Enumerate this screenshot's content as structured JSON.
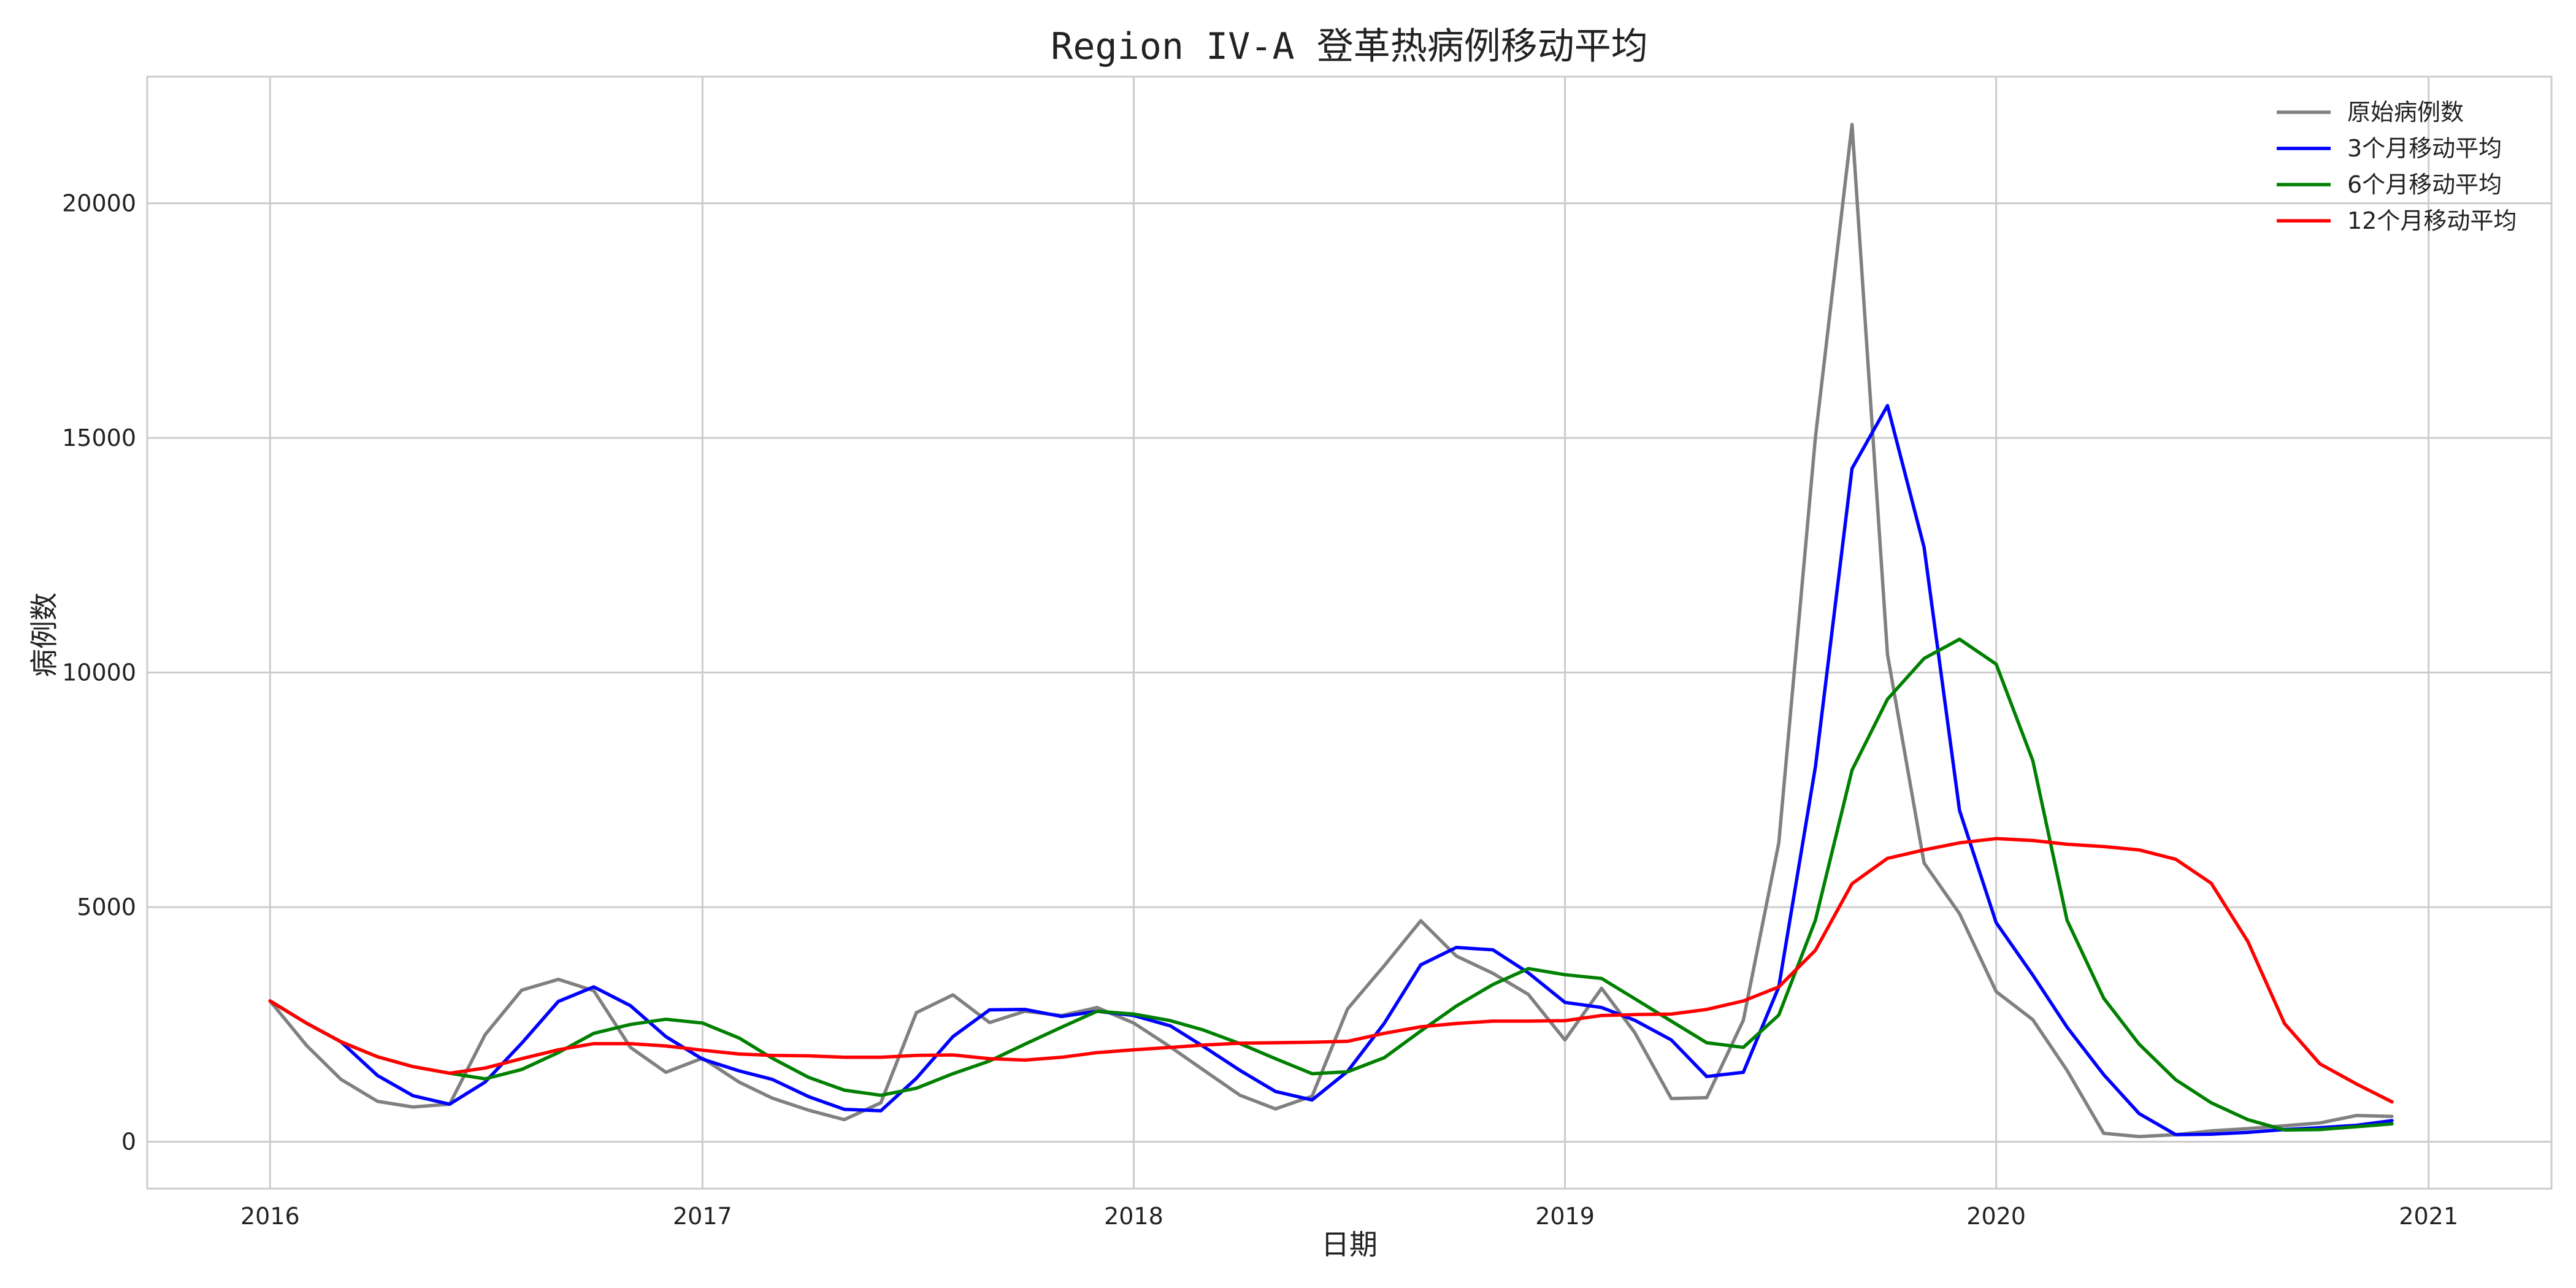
{
  "chart_data": {
    "type": "line",
    "title": "Region IV-A 登革热病例移动平均",
    "xlabel": "日期",
    "ylabel": "病例数",
    "xlim": [
      "2015-09-19",
      "2021-04-15"
    ],
    "ylim": [
      -1000,
      22700
    ],
    "x_ticks": [
      "2016",
      "2017",
      "2018",
      "2019",
      "2020",
      "2021"
    ],
    "y_ticks": [
      0,
      5000,
      10000,
      15000,
      20000
    ],
    "grid": true,
    "legend_position": "top-right",
    "x": [
      "2016-01-01",
      "2016-02-01",
      "2016-03-01",
      "2016-04-01",
      "2016-05-01",
      "2016-06-01",
      "2016-07-01",
      "2016-08-01",
      "2016-09-01",
      "2016-10-01",
      "2016-11-01",
      "2016-12-01",
      "2017-01-01",
      "2017-02-01",
      "2017-03-01",
      "2017-04-01",
      "2017-05-01",
      "2017-06-01",
      "2017-07-01",
      "2017-08-01",
      "2017-09-01",
      "2017-10-01",
      "2017-11-01",
      "2017-12-01",
      "2018-01-01",
      "2018-02-01",
      "2018-03-01",
      "2018-04-01",
      "2018-05-01",
      "2018-06-01",
      "2018-07-01",
      "2018-08-01",
      "2018-09-01",
      "2018-10-01",
      "2018-11-01",
      "2018-12-01",
      "2019-01-01",
      "2019-02-01",
      "2019-03-01",
      "2019-04-01",
      "2019-05-01",
      "2019-06-01",
      "2019-07-01",
      "2019-08-01",
      "2019-09-01",
      "2019-10-01",
      "2019-11-01",
      "2019-12-01",
      "2020-01-01",
      "2020-02-01",
      "2020-03-01",
      "2020-04-01",
      "2020-05-01",
      "2020-06-01",
      "2020-07-01",
      "2020-08-01",
      "2020-09-01",
      "2020-10-01",
      "2020-11-01",
      "2020-12-01"
    ],
    "series": [
      {
        "name": "原始病例数",
        "color": "#808080",
        "values": [
          3000,
          2050,
          1330,
          860,
          740,
          800,
          2280,
          3230,
          3460,
          3220,
          2010,
          1480,
          1780,
          1270,
          930,
          670,
          470,
          830,
          2750,
          3130,
          2540,
          2780,
          2690,
          2860,
          2530,
          2020,
          1530,
          990,
          700,
          970,
          2830,
          3750,
          4710,
          3960,
          3590,
          3140,
          2170,
          3270,
          2330,
          920,
          940,
          2590,
          6370,
          15010,
          21680,
          10390,
          5940,
          4860,
          3200,
          2600,
          1520,
          180,
          110,
          150,
          230,
          280,
          340,
          400,
          560,
          540
        ]
      },
      {
        "name": "3个月移动平均",
        "color": "#0000ff",
        "values": [
          3000,
          2525,
          2130,
          1410,
          980,
          800,
          1270,
          2100,
          2990,
          3300,
          2900,
          2240,
          1760,
          1510,
          1330,
          960,
          690,
          660,
          1350,
          2240,
          2810,
          2820,
          2670,
          2780,
          2690,
          2470,
          2030,
          1520,
          1070,
          890,
          1500,
          2520,
          3770,
          4140,
          4090,
          3600,
          2970,
          2860,
          2590,
          2170,
          1390,
          1480,
          3300,
          7990,
          14350,
          15690,
          12670,
          7060,
          4670,
          3550,
          2440,
          1430,
          600,
          150,
          160,
          200,
          260,
          300,
          350,
          450
        ]
      },
      {
        "name": "6个月移动平均",
        "color": "#008000",
        "values": [
          3000,
          2525,
          2130,
          1810,
          1600,
          1460,
          1340,
          1540,
          1900,
          2310,
          2500,
          2610,
          2530,
          2210,
          1780,
          1370,
          1100,
          990,
          1140,
          1450,
          1720,
          2080,
          2440,
          2780,
          2720,
          2580,
          2380,
          2090,
          1770,
          1450,
          1490,
          1790,
          2360,
          2890,
          3350,
          3690,
          3560,
          3480,
          3050,
          2570,
          2110,
          2010,
          2700,
          4720,
          7920,
          9430,
          10300,
          10710,
          10180,
          8120,
          4720,
          3060,
          2080,
          1320,
          830,
          470,
          250,
          260,
          320,
          380
        ]
      },
      {
        "name": "12个月移动平均",
        "color": "#ff0000",
        "values": [
          3000,
          2525,
          2130,
          1810,
          1600,
          1460,
          1570,
          1770,
          1960,
          2090,
          2090,
          2040,
          1950,
          1870,
          1840,
          1830,
          1800,
          1800,
          1840,
          1850,
          1770,
          1740,
          1800,
          1900,
          1960,
          2010,
          2060,
          2100,
          2110,
          2120,
          2140,
          2310,
          2450,
          2520,
          2570,
          2570,
          2580,
          2690,
          2710,
          2720,
          2820,
          3000,
          3300,
          4080,
          5500,
          6040,
          6220,
          6370,
          6460,
          6420,
          6340,
          6290,
          6220,
          6020,
          5510,
          4270,
          2520,
          1660,
          1230,
          850
        ]
      }
    ]
  }
}
